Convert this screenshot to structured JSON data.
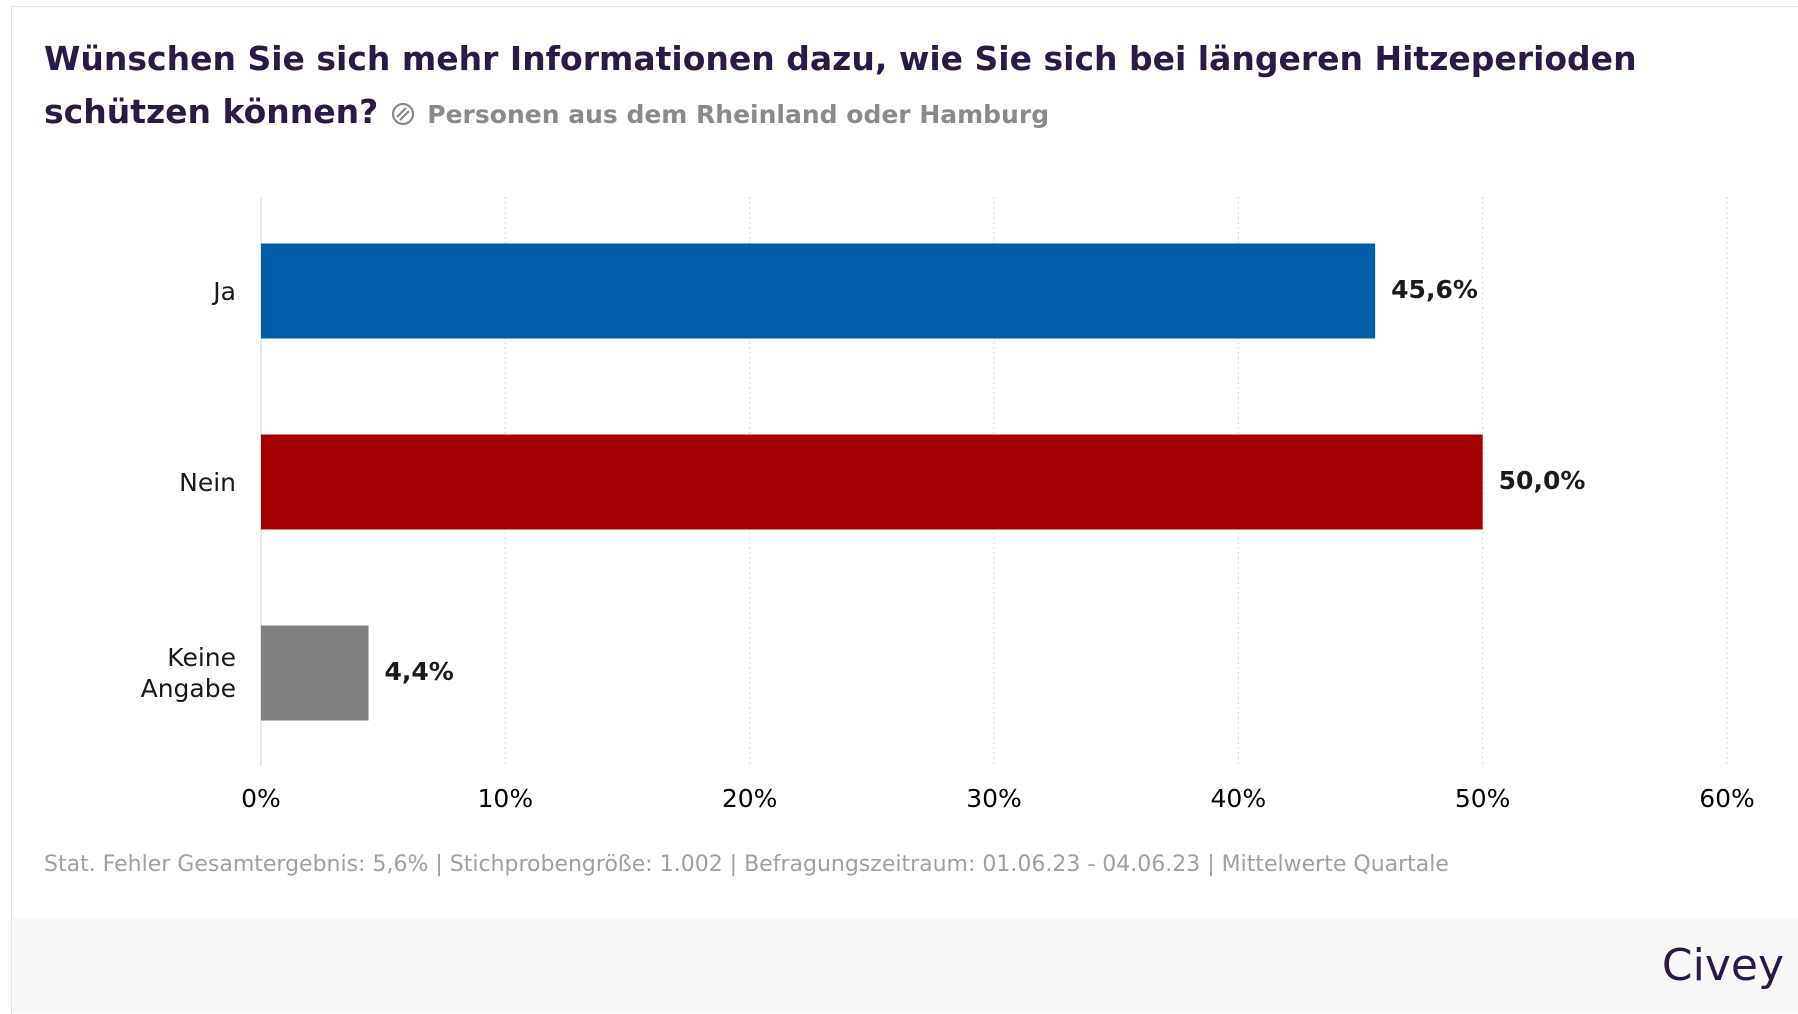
{
  "chart_data": {
    "type": "bar",
    "orientation": "horizontal",
    "title": "Wünschen Sie sich mehr Informationen dazu, wie Sie sich bei längeren Hitzeperioden schützen können?",
    "subtitle": "Personen aus dem Rheinland oder Hamburg",
    "categories": [
      "Ja",
      "Nein",
      "Keine Angabe"
    ],
    "values": [
      45.6,
      50.0,
      4.4
    ],
    "value_labels": [
      "45,6%",
      "50,0%",
      "4,4%"
    ],
    "colors": [
      "#005ea8",
      "#a50000",
      "#7f7f7f"
    ],
    "xlim": [
      0,
      60
    ],
    "xticks": [
      {
        "value": 0,
        "label": "0%"
      },
      {
        "value": 10,
        "label": "10%"
      },
      {
        "value": 20,
        "label": "20%"
      },
      {
        "value": 30,
        "label": "30%"
      },
      {
        "value": 40,
        "label": "40%"
      },
      {
        "value": 50,
        "label": "50%"
      },
      {
        "value": 60,
        "label": "60%"
      }
    ],
    "grid": true,
    "footnote": "Stat. Fehler Gesamtergebnis: 5,6% | Stichprobengröße: 1.002 | Befragungszeitraum: 01.06.23 - 04.06.23 | Mittelwerte Quartale",
    "brand": "Civey"
  }
}
